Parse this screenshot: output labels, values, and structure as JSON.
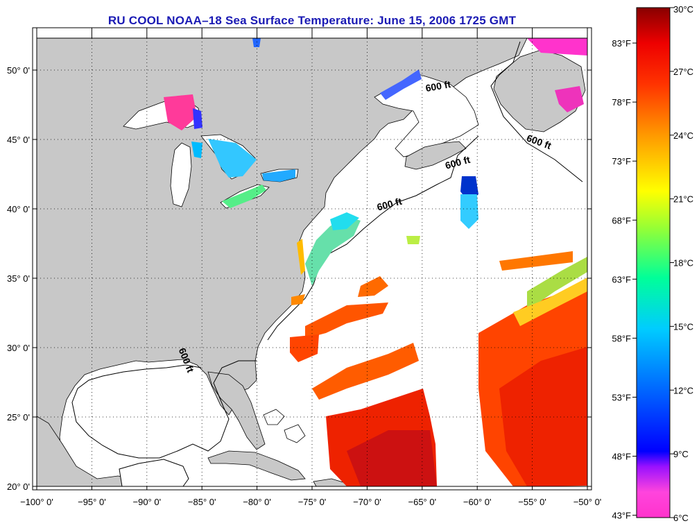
{
  "title": "RU COOL  NOAA–18  Sea Surface Temperature:  June 15, 2006 1725 GMT",
  "map": {
    "longitude_labels": [
      "−100° 0'",
      "−95° 0'",
      "−90° 0'",
      "−85° 0'",
      "−80° 0'",
      "−75° 0'",
      "−70° 0'",
      "−65° 0'",
      "−60° 0'",
      "−55° 0'",
      "−50° 0'"
    ],
    "longitudes": [
      -100,
      -95,
      -90,
      -85,
      -80,
      -75,
      -70,
      -65,
      -60,
      -55,
      -50
    ],
    "latitude_labels": [
      "20° 0'",
      "25° 0'",
      "30° 0'",
      "35° 0'",
      "40° 0'",
      "45° 0'",
      "50° 0'"
    ],
    "latitudes": [
      20,
      25,
      30,
      35,
      40,
      45,
      50
    ],
    "lon_range": [
      -100,
      -50
    ],
    "lat_range": [
      20,
      52.3
    ],
    "grid": "dotted",
    "land_color": "#c8c8c8",
    "no_data_color": "#ffffff",
    "isobath_label": "600 ft",
    "isobath_label_positions": [
      {
        "lon": -63.5,
        "lat": 48.6,
        "rotate": -10
      },
      {
        "lon": -54.5,
        "lat": 44.6,
        "rotate": 20
      },
      {
        "lon": -61.7,
        "lat": 43.1,
        "rotate": -15
      },
      {
        "lon": -67.9,
        "lat": 40.1,
        "rotate": -15
      },
      {
        "lon": -86.7,
        "lat": 29.0,
        "rotate": 68
      }
    ]
  },
  "colorbar": {
    "celsius_labels": [
      "30°C",
      "27°C",
      "24°C",
      "21°C",
      "18°C",
      "15°C",
      "12°C",
      "9°C",
      "6°C"
    ],
    "celsius_values": [
      30,
      27,
      24,
      21,
      18,
      15,
      12,
      9,
      6
    ],
    "fahrenheit_labels": [
      "83°F",
      "78°F",
      "73°F",
      "68°F",
      "63°F",
      "58°F",
      "53°F",
      "48°F",
      "43°F"
    ],
    "fahrenheit_values": [
      83,
      78,
      73,
      68,
      63,
      58,
      53,
      48,
      43
    ],
    "range_c": [
      6,
      30
    ],
    "colors": [
      "#ff33cc",
      "#a000ff",
      "#0000ff",
      "#0088ff",
      "#00ddff",
      "#00ff88",
      "#ffff00",
      "#ff9900",
      "#ff0000",
      "#880000"
    ]
  }
}
